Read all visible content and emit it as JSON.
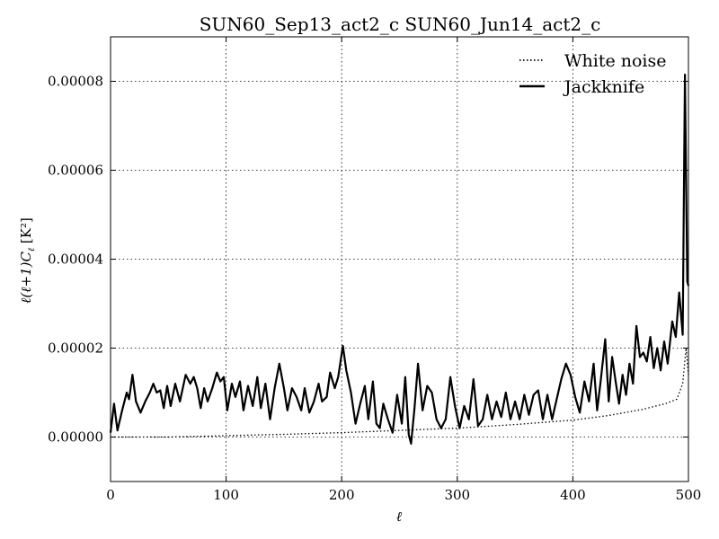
{
  "chart_data": {
    "type": "line",
    "title": "SUN60_Sep13_act2_c SUN60_Jun14_act2_c",
    "xlabel": "ℓ",
    "ylabel": "ℓ(ℓ+1)C",
    "ylabel_sub": "ℓ",
    "ylabel_unit": "[K²]",
    "xlim": [
      0,
      500
    ],
    "ylim": [
      -1e-05,
      9e-05
    ],
    "x_ticks": [
      0,
      100,
      200,
      300,
      400,
      500
    ],
    "y_ticks": [
      0,
      2e-05,
      4e-05,
      6e-05,
      8e-05
    ],
    "x_tick_labels": [
      "0",
      "100",
      "200",
      "300",
      "400",
      "500"
    ],
    "y_tick_labels": [
      "0.00000",
      "0.00002",
      "0.00004",
      "0.00006",
      "0.00008"
    ],
    "grid": true,
    "legend_position": "top-right",
    "series": [
      {
        "name": "White noise",
        "style": "dotted",
        "color": "#000000",
        "points": [
          [
            0,
            0
          ],
          [
            50,
            0
          ],
          [
            100,
            3e-07
          ],
          [
            150,
            6e-07
          ],
          [
            200,
            1e-06
          ],
          [
            250,
            1.5e-06
          ],
          [
            300,
            2e-06
          ],
          [
            350,
            2.8e-06
          ],
          [
            400,
            3.8e-06
          ],
          [
            430,
            4.8e-06
          ],
          [
            460,
            6.2e-06
          ],
          [
            480,
            7.5e-06
          ],
          [
            490,
            8.5e-06
          ],
          [
            495,
            1.2e-05
          ],
          [
            498,
            2e-05
          ],
          [
            500,
            1.4e-05
          ]
        ]
      },
      {
        "name": "Jackknife",
        "style": "solid",
        "color": "#000000",
        "points": [
          [
            0,
            1e-06
          ],
          [
            3,
            7.5e-06
          ],
          [
            6,
            1.5e-06
          ],
          [
            10,
            6e-06
          ],
          [
            14,
            1e-05
          ],
          [
            16,
            8.5e-06
          ],
          [
            19,
            1.4e-05
          ],
          [
            22,
            8e-06
          ],
          [
            26,
            5.5e-06
          ],
          [
            30,
            8e-06
          ],
          [
            34,
            1e-05
          ],
          [
            37,
            1.2e-05
          ],
          [
            40,
            1e-05
          ],
          [
            43,
            1.05e-05
          ],
          [
            46,
            6.5e-06
          ],
          [
            49,
            1.15e-05
          ],
          [
            52,
            7e-06
          ],
          [
            56,
            1.2e-05
          ],
          [
            60,
            8e-06
          ],
          [
            65,
            1.4e-05
          ],
          [
            69,
            1.2e-05
          ],
          [
            72,
            1.35e-05
          ],
          [
            75,
            1.1e-05
          ],
          [
            78,
            6.5e-06
          ],
          [
            81,
            1.1e-05
          ],
          [
            84,
            8e-06
          ],
          [
            88,
            1.1e-05
          ],
          [
            92,
            1.45e-05
          ],
          [
            95,
            1.25e-05
          ],
          [
            98,
            1.35e-05
          ],
          [
            101,
            6e-06
          ],
          [
            105,
            1.2e-05
          ],
          [
            108,
            9e-06
          ],
          [
            112,
            1.25e-05
          ],
          [
            115,
            6e-06
          ],
          [
            119,
            1.15e-05
          ],
          [
            123,
            7e-06
          ],
          [
            127,
            1.35e-05
          ],
          [
            130,
            6.5e-06
          ],
          [
            134,
            1.2e-05
          ],
          [
            138,
            4e-06
          ],
          [
            142,
            1.1e-05
          ],
          [
            146,
            1.65e-05
          ],
          [
            150,
            1.1e-05
          ],
          [
            153,
            6e-06
          ],
          [
            157,
            1.1e-05
          ],
          [
            161,
            9e-06
          ],
          [
            165,
            6e-06
          ],
          [
            168,
            1.1e-05
          ],
          [
            172,
            5.5e-06
          ],
          [
            176,
            8e-06
          ],
          [
            180,
            1.2e-05
          ],
          [
            183,
            8e-06
          ],
          [
            187,
            9e-06
          ],
          [
            190,
            1.45e-05
          ],
          [
            194,
            1.1e-05
          ],
          [
            197,
            1.35e-05
          ],
          [
            201,
            2.05e-05
          ],
          [
            204,
            1.5e-05
          ],
          [
            208,
            1e-05
          ],
          [
            212,
            3e-06
          ],
          [
            216,
            7.5e-06
          ],
          [
            220,
            1.15e-05
          ],
          [
            223,
            4e-06
          ],
          [
            227,
            1.25e-05
          ],
          [
            230,
            3e-06
          ],
          [
            233,
            2e-06
          ],
          [
            236,
            7.5e-06
          ],
          [
            240,
            4e-06
          ],
          [
            244,
            1e-06
          ],
          [
            248,
            9.5e-06
          ],
          [
            252,
            3e-06
          ],
          [
            255,
            1.35e-05
          ],
          [
            258,
            5e-07
          ],
          [
            260,
            -1.5e-06
          ],
          [
            263,
            6.5e-06
          ],
          [
            266,
            1.65e-05
          ],
          [
            270,
            6e-06
          ],
          [
            274,
            1.15e-05
          ],
          [
            278,
            1e-05
          ],
          [
            282,
            4e-06
          ],
          [
            286,
            2e-06
          ],
          [
            290,
            4e-06
          ],
          [
            294,
            1.35e-05
          ],
          [
            298,
            7e-06
          ],
          [
            302,
            2e-06
          ],
          [
            306,
            7e-06
          ],
          [
            310,
            4e-06
          ],
          [
            314,
            1.3e-05
          ],
          [
            318,
            2.5e-06
          ],
          [
            322,
            4e-06
          ],
          [
            326,
            9.5e-06
          ],
          [
            330,
            4e-06
          ],
          [
            334,
            8e-06
          ],
          [
            338,
            4.5e-06
          ],
          [
            342,
            1e-05
          ],
          [
            346,
            4e-06
          ],
          [
            350,
            8e-06
          ],
          [
            354,
            4e-06
          ],
          [
            358,
            9.5e-06
          ],
          [
            362,
            5e-06
          ],
          [
            366,
            9.5e-06
          ],
          [
            370,
            1.05e-05
          ],
          [
            374,
            4e-06
          ],
          [
            378,
            9.5e-06
          ],
          [
            382,
            4e-06
          ],
          [
            386,
            8.5e-06
          ],
          [
            390,
            1.3e-05
          ],
          [
            394,
            1.65e-05
          ],
          [
            398,
            1.4e-05
          ],
          [
            402,
            9e-06
          ],
          [
            406,
            5.5e-06
          ],
          [
            410,
            1.25e-05
          ],
          [
            414,
            8e-06
          ],
          [
            418,
            1.65e-05
          ],
          [
            421,
            6e-06
          ],
          [
            424,
            1.25e-05
          ],
          [
            428,
            2.2e-05
          ],
          [
            431,
            8e-06
          ],
          [
            434,
            1.8e-05
          ],
          [
            437,
            1.25e-05
          ],
          [
            440,
            7.5e-06
          ],
          [
            443,
            1.4e-05
          ],
          [
            446,
            9.5e-06
          ],
          [
            449,
            1.65e-05
          ],
          [
            452,
            1.2e-05
          ],
          [
            455,
            2.5e-05
          ],
          [
            458,
            1.8e-05
          ],
          [
            461,
            1.9e-05
          ],
          [
            464,
            1.7e-05
          ],
          [
            467,
            2.25e-05
          ],
          [
            470,
            1.55e-05
          ],
          [
            473,
            2e-05
          ],
          [
            476,
            1.5e-05
          ],
          [
            479,
            2.15e-05
          ],
          [
            482,
            1.65e-05
          ],
          [
            486,
            2.6e-05
          ],
          [
            489,
            2.25e-05
          ],
          [
            492,
            3.25e-05
          ],
          [
            495,
            2.3e-05
          ],
          [
            497,
            8.15e-05
          ],
          [
            499,
            3.5e-05
          ],
          [
            500,
            3.4e-05
          ]
        ]
      }
    ]
  }
}
